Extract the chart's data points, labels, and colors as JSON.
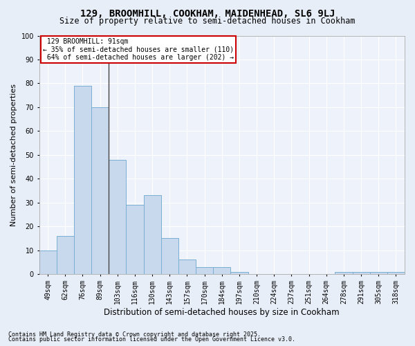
{
  "title1": "129, BROOMHILL, COOKHAM, MAIDENHEAD, SL6 9LJ",
  "title2": "Size of property relative to semi-detached houses in Cookham",
  "xlabel": "Distribution of semi-detached houses by size in Cookham",
  "ylabel": "Number of semi-detached properties",
  "categories": [
    "49sqm",
    "62sqm",
    "76sqm",
    "89sqm",
    "103sqm",
    "116sqm",
    "130sqm",
    "143sqm",
    "157sqm",
    "170sqm",
    "184sqm",
    "197sqm",
    "210sqm",
    "224sqm",
    "237sqm",
    "251sqm",
    "264sqm",
    "278sqm",
    "291sqm",
    "305sqm",
    "318sqm"
  ],
  "values": [
    10,
    16,
    79,
    70,
    48,
    29,
    33,
    15,
    6,
    3,
    3,
    1,
    0,
    0,
    0,
    0,
    0,
    1,
    1,
    1,
    1
  ],
  "bar_color": "#c8d9ee",
  "bar_edge_color": "#7aaed4",
  "vline_label": "129 BROOMHILL: 91sqm",
  "pct_smaller": "35% of semi-detached houses are smaller (110)",
  "pct_larger": "64% of semi-detached houses are larger (202)",
  "annotation_box_color": "#ffffff",
  "annotation_box_edge": "#cc0000",
  "footer1": "Contains HM Land Registry data © Crown copyright and database right 2025.",
  "footer2": "Contains public sector information licensed under the Open Government Licence v3.0.",
  "bg_color": "#e8eef8",
  "plot_bg_color": "#eef2fa",
  "grid_color": "#ffffff",
  "vline_color": "#444444",
  "ylim": [
    0,
    100
  ],
  "yticks": [
    0,
    10,
    20,
    30,
    40,
    50,
    60,
    70,
    80,
    90,
    100
  ],
  "vline_x": 3.5,
  "title1_fontsize": 10,
  "title2_fontsize": 8.5,
  "ylabel_fontsize": 8,
  "xlabel_fontsize": 8.5,
  "tick_fontsize": 7,
  "footer_fontsize": 6,
  "ann_fontsize": 7
}
